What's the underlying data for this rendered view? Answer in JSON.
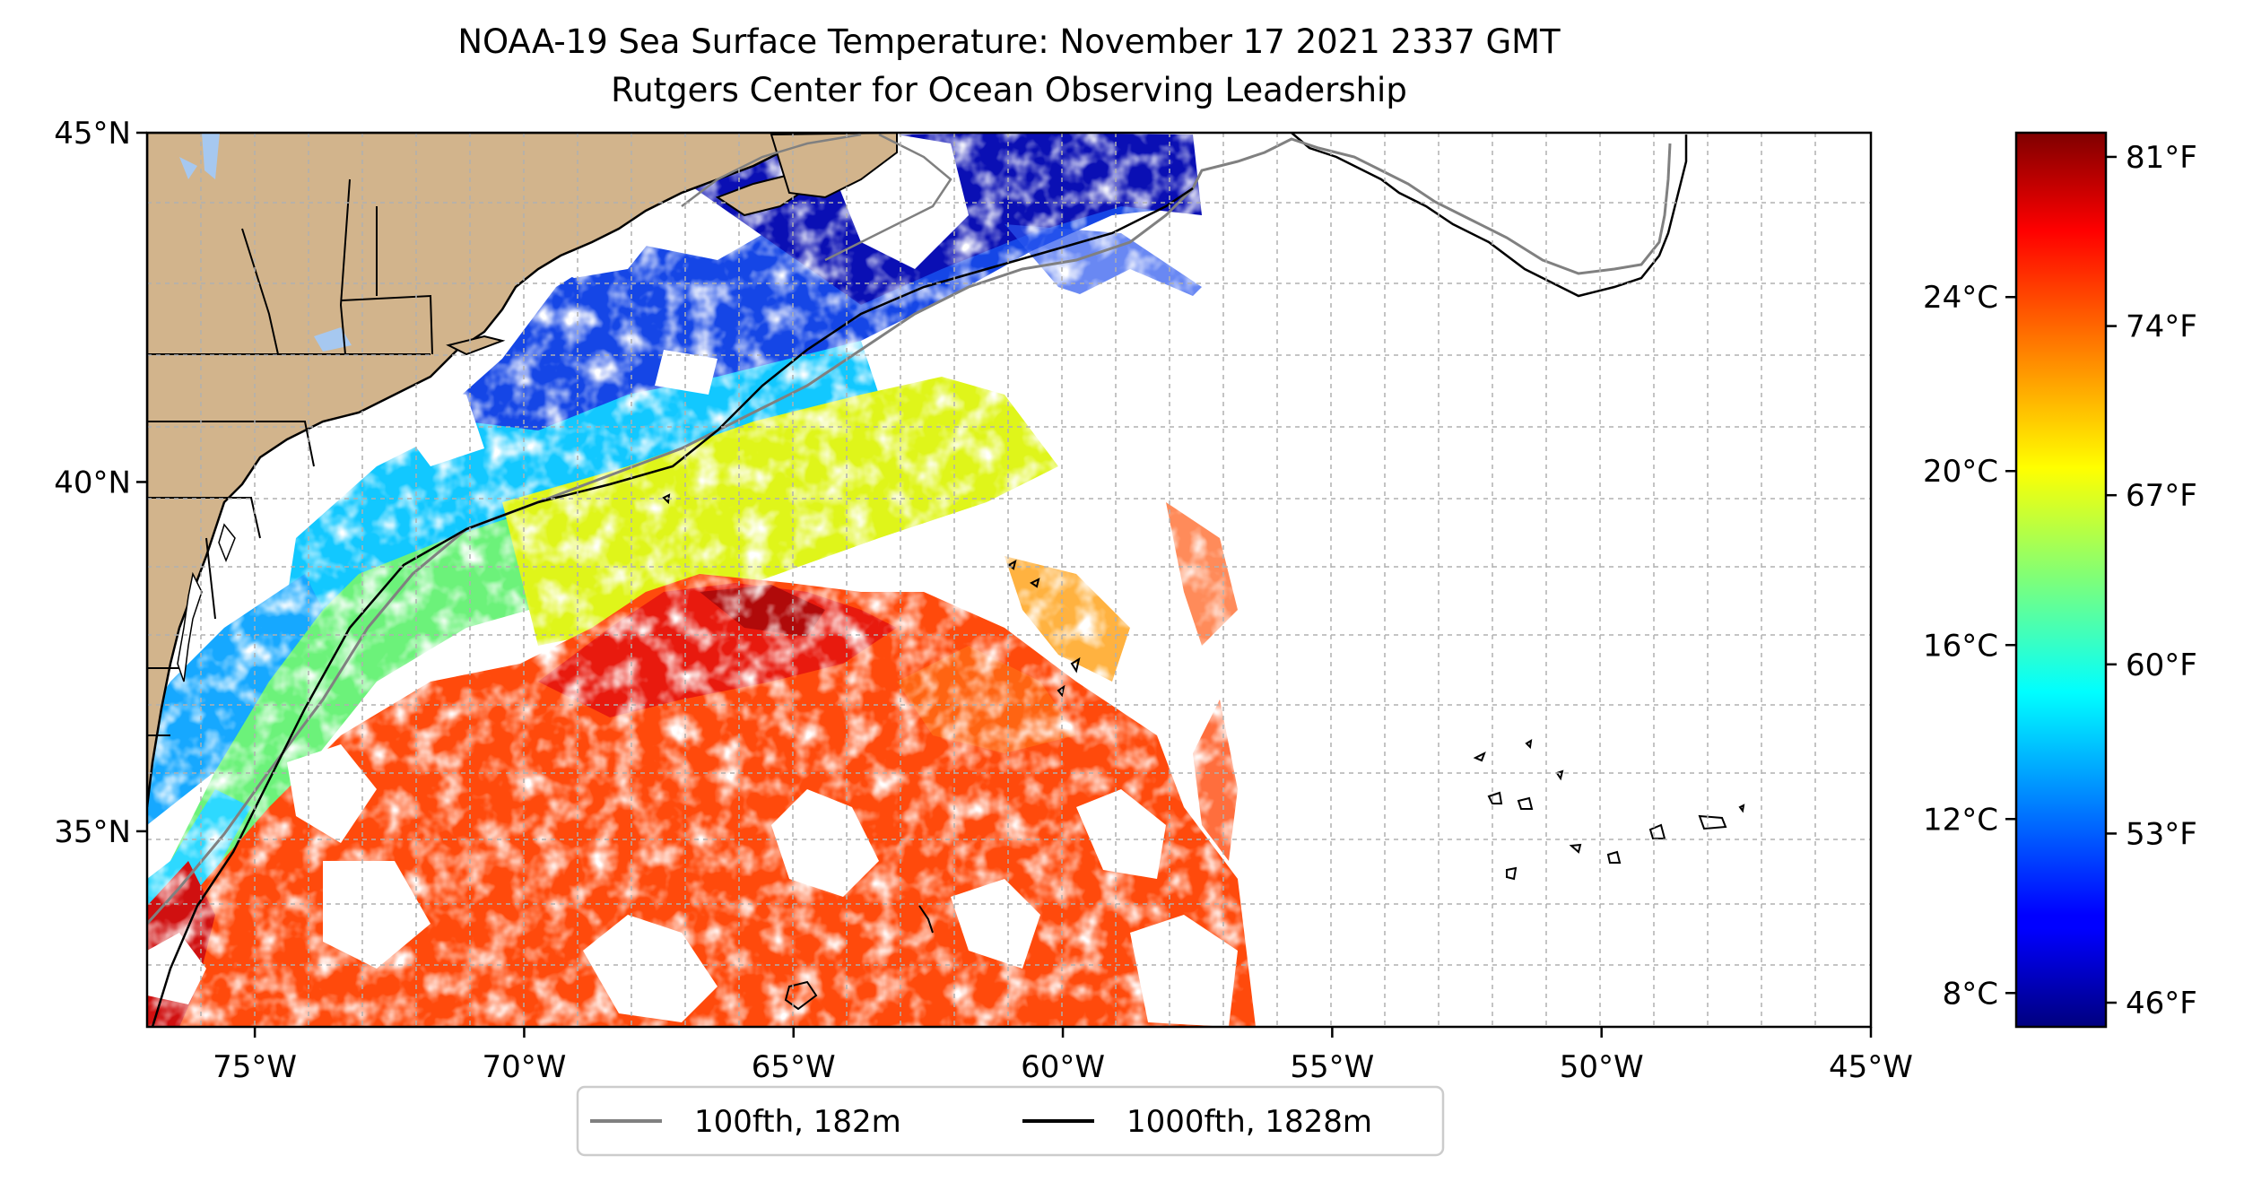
{
  "title": "NOAA-19 Sea Surface Temperature: November 17 2021 2337 GMT",
  "subtitle": "Rutgers Center for Ocean Observing Leadership",
  "map": {
    "lon_range": [
      -77,
      -45
    ],
    "lat_range": [
      32.2,
      45
    ],
    "lon_ticks": [
      {
        "value": -75,
        "label": "75°W"
      },
      {
        "value": -70,
        "label": "70°W"
      },
      {
        "value": -65,
        "label": "65°W"
      },
      {
        "value": -60,
        "label": "60°W"
      },
      {
        "value": -55,
        "label": "55°W"
      },
      {
        "value": -50,
        "label": "50°W"
      },
      {
        "value": -45,
        "label": "45°W"
      }
    ],
    "lat_ticks": [
      {
        "value": 45,
        "label": "45°N"
      },
      {
        "value": 40,
        "label": "40°N"
      },
      {
        "value": 35,
        "label": "35°N"
      }
    ],
    "gridlines": "dashed",
    "colors": {
      "land": "#d2b48c",
      "lakes": "#a6c8f0",
      "cloud_mask": "#ffffff"
    }
  },
  "legend": {
    "items": [
      {
        "label": "100fth, 182m",
        "color": "#808080"
      },
      {
        "label": "1000fth, 1828m",
        "color": "#000000"
      }
    ]
  },
  "colorbar": {
    "colormap": "jet",
    "fahrenheit_ticks": [
      "81°F",
      "74°F",
      "67°F",
      "60°F",
      "53°F",
      "46°F"
    ],
    "celsius_ticks": [
      "24°C",
      "20°C",
      "16°C",
      "12°C",
      "8°C"
    ],
    "range_f": [
      45,
      82
    ]
  }
}
